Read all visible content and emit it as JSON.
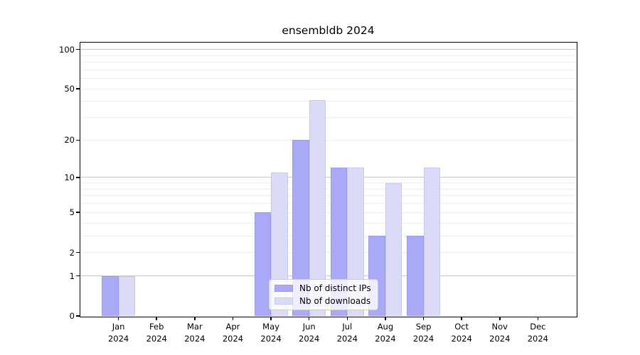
{
  "chart_data": {
    "type": "bar",
    "title": "ensembldb 2024",
    "categories": [
      "Jan",
      "Feb",
      "Mar",
      "Apr",
      "May",
      "Jun",
      "Jul",
      "Aug",
      "Sep",
      "Oct",
      "Nov",
      "Dec"
    ],
    "year_label": "2024",
    "series": [
      {
        "name": "Nb of distinct IPs",
        "color": "#a9a9f7",
        "edge": "#9b9bea",
        "values": [
          1,
          0,
          0,
          0,
          5,
          20,
          12,
          3,
          3,
          0,
          0,
          0
        ]
      },
      {
        "name": "Nb of downloads",
        "color": "#dbdbf8",
        "edge": "#c9c9ef",
        "values": [
          1,
          0,
          0,
          0,
          11,
          41,
          12,
          9,
          12,
          0,
          0,
          0
        ]
      }
    ],
    "xlabel": "",
    "ylabel": "",
    "yscale": "log1p",
    "ylim": [
      0,
      112.6
    ],
    "yticks": [
      0,
      1,
      2,
      5,
      10,
      20,
      50,
      100
    ],
    "major_gridlines": [
      1,
      10,
      100
    ],
    "minor_gridlines": [
      2,
      3,
      4,
      5,
      6,
      7,
      8,
      9,
      20,
      30,
      40,
      50,
      60,
      70,
      80,
      90
    ],
    "grid": true,
    "legend_position": "lower center"
  },
  "colors": {
    "background": "#ffffff",
    "axis": "#000000",
    "text": "#000000",
    "major_grid": "#c6c6c6",
    "minor_grid": "#ededed",
    "legend_bg": "rgba(255,255,255,0.8)",
    "legend_border": "#cccccc"
  }
}
